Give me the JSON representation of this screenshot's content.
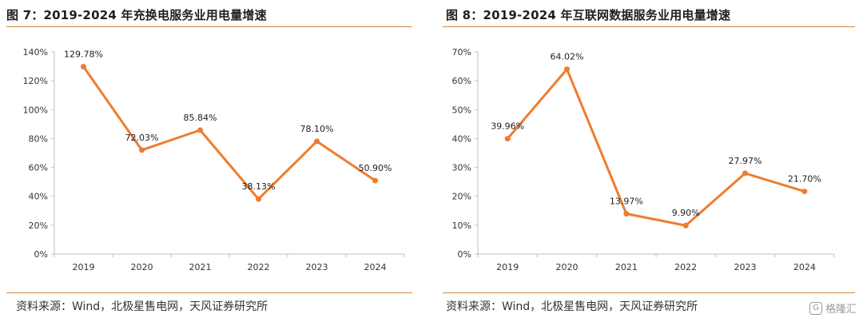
{
  "charts": [
    {
      "title": "图 7：2019-2024 年充换电服务业用电量增速",
      "source": "资料来源：Wind，北极星售电网，天风证券研究所"
    },
    {
      "title": "图 8：2019-2024 年互联网数据服务业用电量增速",
      "source": "资料来源：Wind，北极星售电网，天风证券研究所"
    }
  ],
  "watermark": {
    "text": "格隆汇",
    "icon": "glh-logo-icon"
  },
  "chart_data": [
    {
      "type": "line",
      "title": "图 7：2019-2024 年充换电服务业用电量增速",
      "x": [
        "2019",
        "2020",
        "2021",
        "2022",
        "2023",
        "2024"
      ],
      "series": [
        {
          "values": [
            129.78,
            72.03,
            85.84,
            38.13,
            78.1,
            50.9
          ],
          "labels": [
            "129.78%",
            "72.03%",
            "85.84%",
            "38.13%",
            "78.10%",
            "50.90%"
          ]
        }
      ],
      "ylim": [
        0,
        140
      ],
      "yticks": [
        "0%",
        "20%",
        "40%",
        "60%",
        "80%",
        "100%",
        "120%",
        "140%"
      ],
      "color": "#ED7D31",
      "grid": false
    },
    {
      "type": "line",
      "title": "图 8：2019-2024 年互联网数据服务业用电量增速",
      "x": [
        "2019",
        "2020",
        "2021",
        "2022",
        "2023",
        "2024"
      ],
      "series": [
        {
          "values": [
            39.96,
            64.02,
            13.97,
            9.9,
            27.97,
            21.7
          ],
          "labels": [
            "39.96%",
            "64.02%",
            "13.97%",
            "9.90%",
            "27.97%",
            "21.70%"
          ]
        }
      ],
      "ylim": [
        0,
        70
      ],
      "yticks": [
        "0%",
        "10%",
        "20%",
        "30%",
        "40%",
        "50%",
        "60%",
        "70%"
      ],
      "color": "#ED7D31",
      "grid": false
    }
  ]
}
